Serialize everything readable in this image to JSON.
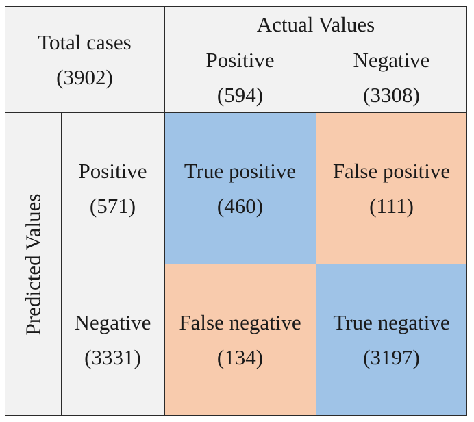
{
  "header": {
    "total_label": "Total cases",
    "total_value": "(3902)",
    "actual_title": "Actual Values",
    "actual_positive_label": "Positive",
    "actual_positive_value": "(594)",
    "actual_negative_label": "Negative",
    "actual_negative_value": "(3308)"
  },
  "predicted": {
    "title": "Predicted Values",
    "positive_label": "Positive",
    "positive_value": "(571)",
    "negative_label": "Negative",
    "negative_value": "(3331)"
  },
  "matrix": {
    "tp_label": "True positive",
    "tp_value": "(460)",
    "fp_label": "False positive",
    "fp_value": "(111)",
    "fn_label": "False negative",
    "fn_value": "(134)",
    "tn_label": "True negative",
    "tn_value": "(3197)"
  },
  "colors": {
    "correct": "#9fc3e7",
    "incorrect": "#f8cbad",
    "background": "#f2f2f2",
    "border": "#2b2b2b"
  }
}
